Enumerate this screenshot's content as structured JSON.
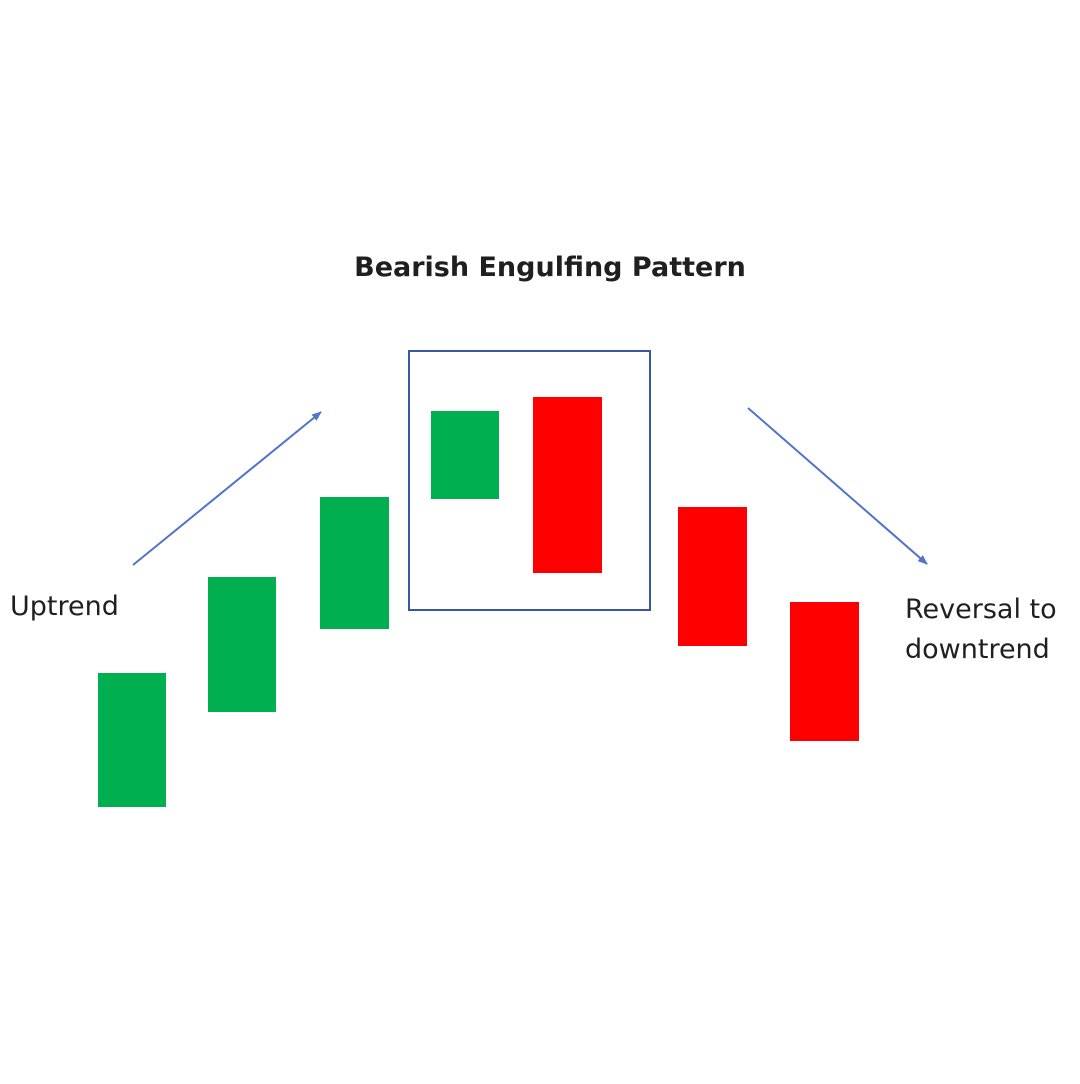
{
  "title": "Bearish Engulfing Pattern",
  "labels": {
    "left": "Uptrend",
    "right_line1": "Reversal to",
    "right_line2": "downtrend"
  },
  "colors": {
    "bullish": "#00b050",
    "bearish": "#ff0000",
    "highlight_box": "#3a56a0",
    "arrow": "#4f74c8",
    "text": "#1f1f1f",
    "background": "#ffffff"
  },
  "candles": [
    {
      "name": "candle-1",
      "direction": "up",
      "in_pattern": false
    },
    {
      "name": "candle-2",
      "direction": "up",
      "in_pattern": false
    },
    {
      "name": "candle-3",
      "direction": "up",
      "in_pattern": false
    },
    {
      "name": "candle-4",
      "direction": "up",
      "in_pattern": true
    },
    {
      "name": "candle-5",
      "direction": "down",
      "in_pattern": true
    },
    {
      "name": "candle-6",
      "direction": "down",
      "in_pattern": false
    },
    {
      "name": "candle-7",
      "direction": "down",
      "in_pattern": false
    }
  ],
  "arrows": [
    {
      "name": "uptrend-arrow",
      "direction": "up-right"
    },
    {
      "name": "downtrend-arrow",
      "direction": "down-right"
    }
  ]
}
